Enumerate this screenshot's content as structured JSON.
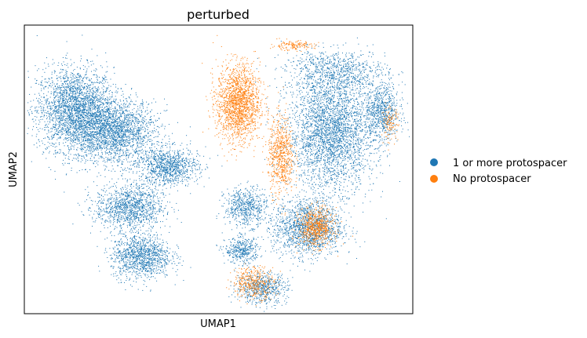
{
  "chart_data": {
    "type": "scatter",
    "title": "perturbed",
    "xlabel": "UMAP1",
    "ylabel": "UMAP2",
    "xlim": [
      0,
      100
    ],
    "ylim": [
      0,
      100
    ],
    "grid": false,
    "ticks_shown": false,
    "legend_position": "right",
    "series": [
      {
        "name": "1 or more protospacer",
        "color": "#1f77b4"
      },
      {
        "name": "No protospacer",
        "color": "#ff7f0e"
      }
    ],
    "clusters": [
      {
        "series": 0,
        "center": [
          13,
          71
        ],
        "spread": [
          9,
          13
        ],
        "points": 2600
      },
      {
        "series": 0,
        "center": [
          23,
          63
        ],
        "spread": [
          10,
          10
        ],
        "points": 2200
      },
      {
        "series": 0,
        "center": [
          37,
          51
        ],
        "spread": [
          7,
          6
        ],
        "points": 1000
      },
      {
        "series": 0,
        "center": [
          27,
          37
        ],
        "spread": [
          8,
          7
        ],
        "points": 1200
      },
      {
        "series": 0,
        "center": [
          30,
          20
        ],
        "spread": [
          7,
          7
        ],
        "points": 1200
      },
      {
        "series": 0,
        "center": [
          79,
          63
        ],
        "spread": [
          10,
          18
        ],
        "points": 3200
      },
      {
        "series": 0,
        "center": [
          73,
          30
        ],
        "spread": [
          8,
          9
        ],
        "points": 1600
      },
      {
        "series": 0,
        "center": [
          92,
          70
        ],
        "spread": [
          4,
          9
        ],
        "points": 700
      },
      {
        "series": 0,
        "center": [
          57,
          37
        ],
        "spread": [
          5,
          6
        ],
        "points": 600
      },
      {
        "series": 1,
        "center": [
          55,
          73
        ],
        "spread": [
          5,
          12
        ],
        "points": 1800
      },
      {
        "series": 1,
        "center": [
          66,
          55
        ],
        "spread": [
          3,
          12
        ],
        "points": 700
      },
      {
        "series": 1,
        "center": [
          75,
          30
        ],
        "spread": [
          4,
          6
        ],
        "points": 700
      },
      {
        "series": 1,
        "center": [
          59,
          11
        ],
        "spread": [
          5,
          5
        ],
        "points": 400
      },
      {
        "series": 1,
        "center": [
          69,
          93
        ],
        "spread": [
          5,
          1.5
        ],
        "points": 150
      },
      {
        "series": 0,
        "center": [
          61,
          9
        ],
        "spread": [
          6,
          5
        ],
        "points": 600
      },
      {
        "series": 0,
        "center": [
          56,
          22
        ],
        "spread": [
          4,
          4
        ],
        "points": 400
      },
      {
        "series": 0,
        "center": [
          80,
          84
        ],
        "spread": [
          12,
          7
        ],
        "points": 800
      },
      {
        "series": 1,
        "center": [
          94,
          66
        ],
        "spread": [
          2,
          5
        ],
        "points": 120
      }
    ]
  }
}
